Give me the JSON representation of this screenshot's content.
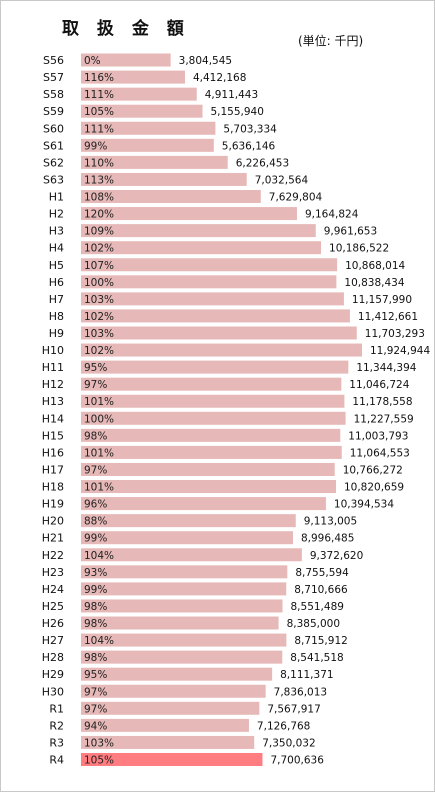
{
  "chart_data": {
    "type": "bar",
    "orientation": "horizontal",
    "title": "取 扱 金 額",
    "unit_label": "(単位: 千円)",
    "categories": [
      "S56",
      "S57",
      "S58",
      "S59",
      "S60",
      "S61",
      "S62",
      "S63",
      "H1",
      "H2",
      "H3",
      "H4",
      "H5",
      "H6",
      "H7",
      "H8",
      "H9",
      "H10",
      "H11",
      "H12",
      "H13",
      "H14",
      "H15",
      "H16",
      "H17",
      "H18",
      "H19",
      "H20",
      "H21",
      "H22",
      "H23",
      "H24",
      "H25",
      "H26",
      "H27",
      "H28",
      "H29",
      "H30",
      "R1",
      "R2",
      "R3",
      "R4"
    ],
    "values": [
      3804545,
      4412168,
      4911443,
      5155940,
      5703334,
      5636146,
      6226453,
      7032564,
      7629804,
      9164824,
      9961653,
      10186522,
      10868014,
      10838434,
      11157990,
      11412661,
      11703293,
      11924944,
      11344394,
      11046724,
      11178558,
      11227559,
      11003793,
      11064553,
      10766272,
      10820659,
      10394534,
      9113005,
      8996485,
      9372620,
      8755594,
      8710666,
      8551489,
      8385000,
      8715912,
      8541518,
      8111371,
      7836013,
      7567917,
      7126768,
      7350032,
      7700636
    ],
    "value_labels": [
      "3,804,545",
      "4,412,168",
      "4,911,443",
      "5,155,940",
      "5,703,334",
      "5,636,146",
      "6,226,453",
      "7,032,564",
      "7,629,804",
      "9,164,824",
      "9,961,653",
      "10,186,522",
      "10,868,014",
      "10,838,434",
      "11,157,990",
      "11,412,661",
      "11,703,293",
      "11,924,944",
      "11,344,394",
      "11,046,724",
      "11,178,558",
      "11,227,559",
      "11,003,793",
      "11,064,553",
      "10,766,272",
      "10,820,659",
      "10,394,534",
      "9,113,005",
      "8,996,485",
      "9,372,620",
      "8,755,594",
      "8,710,666",
      "8,551,489",
      "8,385,000",
      "8,715,912",
      "8,541,518",
      "8,111,371",
      "7,836,013",
      "7,567,917",
      "7,126,768",
      "7,350,032",
      "7,700,636"
    ],
    "percent_labels": [
      "0%",
      "116%",
      "111%",
      "105%",
      "111%",
      "99%",
      "110%",
      "113%",
      "108%",
      "120%",
      "109%",
      "102%",
      "107%",
      "100%",
      "103%",
      "102%",
      "103%",
      "102%",
      "95%",
      "97%",
      "101%",
      "100%",
      "98%",
      "101%",
      "97%",
      "101%",
      "96%",
      "88%",
      "99%",
      "104%",
      "93%",
      "99%",
      "98%",
      "98%",
      "104%",
      "98%",
      "95%",
      "97%",
      "97%",
      "94%",
      "103%",
      "105%"
    ],
    "highlight_index": 41,
    "colors": {
      "bar": "#e6b8b7",
      "highlight": "#ff7c80"
    },
    "xlabel": "",
    "ylabel": ""
  }
}
